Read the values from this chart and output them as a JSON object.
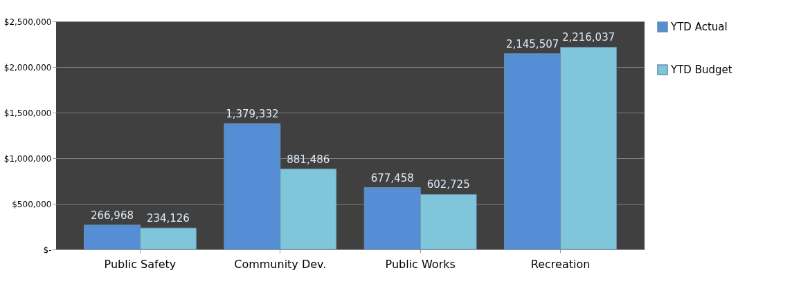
{
  "chart_data": {
    "type": "bar",
    "categories": [
      "Public Safety",
      "Community Dev.",
      "Public Works",
      "Recreation"
    ],
    "series": [
      {
        "name": "YTD Actual",
        "color": "#558ed5",
        "values": [
          266968,
          1379332,
          677458,
          2145507
        ],
        "value_labels": [
          "266,968",
          "1,379,332",
          "677,458",
          "2,145,507"
        ]
      },
      {
        "name": "YTD Budget",
        "color": "#7fc6db",
        "values": [
          234126,
          881486,
          602725,
          2216037
        ],
        "value_labels": [
          "234,126",
          "881,486",
          "602,725",
          "2,216,037"
        ]
      }
    ],
    "ylim": [
      0,
      2500000
    ],
    "yticks": [
      {
        "value": 0,
        "label": "$-"
      },
      {
        "value": 500000,
        "label": "$500,000"
      },
      {
        "value": 1000000,
        "label": "$1,000,000"
      },
      {
        "value": 1500000,
        "label": "$1,500,000"
      },
      {
        "value": 2000000,
        "label": "$2,000,000"
      },
      {
        "value": 2500000,
        "label": "$2,500,000"
      }
    ],
    "grid": "y",
    "legend": "right"
  }
}
